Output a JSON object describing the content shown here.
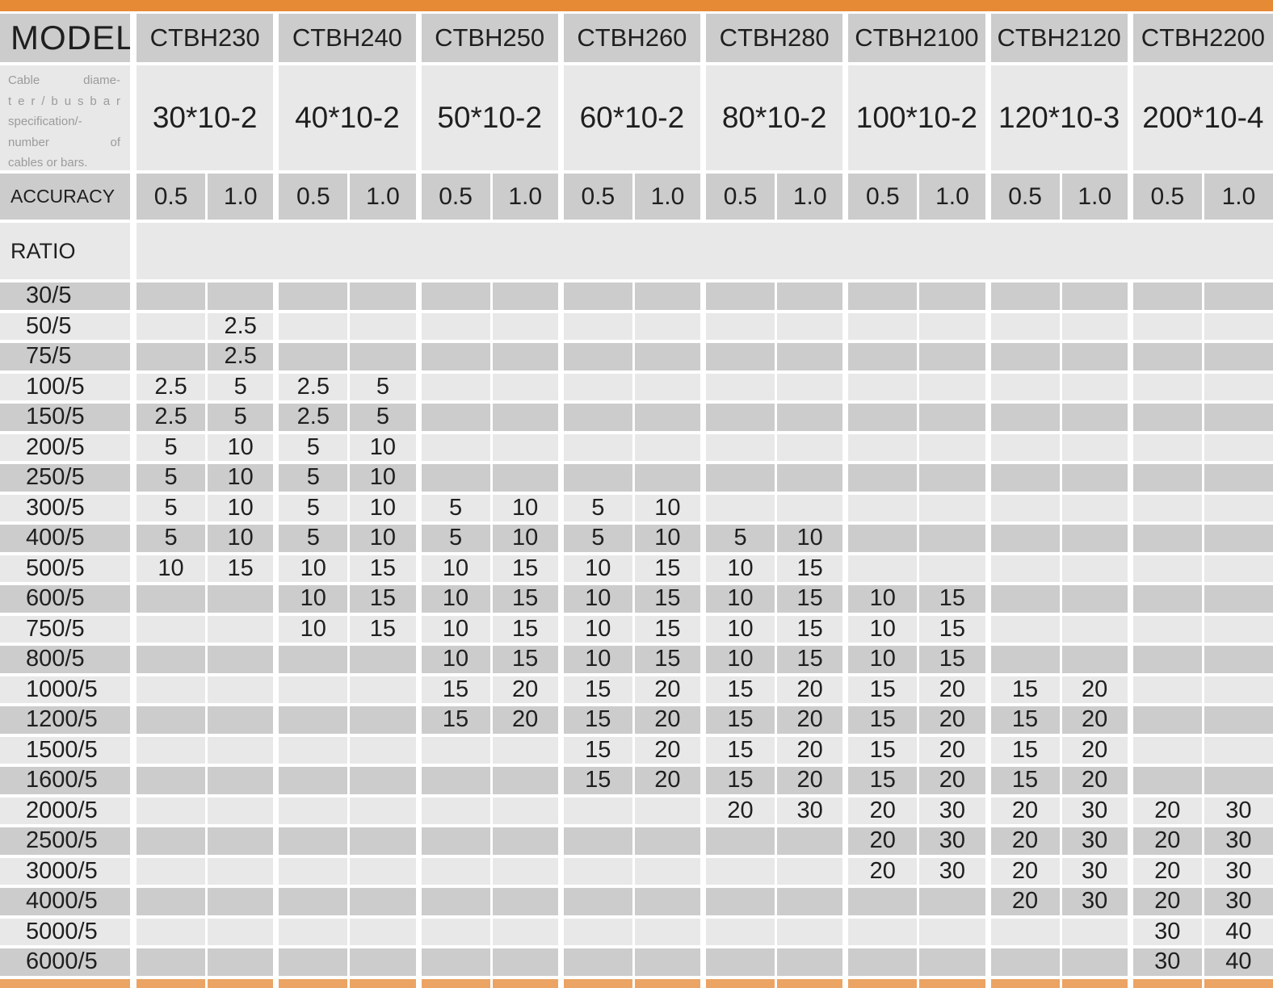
{
  "colors": {
    "top_bar": "#E68A36",
    "bottom_bar": "#EBA464",
    "cell_dark": "#CCCCCC",
    "cell_light": "#E8E8E8",
    "text_dark": "#1F1F1F",
    "note_text": "#9B9B9B"
  },
  "header": {
    "model_label": "MODEL",
    "accuracy_label": "ACCURACY",
    "ratio_label": "RATIO",
    "spec_note_lines": [
      "Cable diame-",
      "t e r / b u s b a r",
      "specification/-",
      "number of",
      "cables or bars."
    ],
    "models": [
      {
        "name": "CTBH230",
        "spec": "30*10-2"
      },
      {
        "name": "CTBH240",
        "spec": "40*10-2"
      },
      {
        "name": "CTBH250",
        "spec": "50*10-2"
      },
      {
        "name": "CTBH260",
        "spec": "60*10-2"
      },
      {
        "name": "CTBH280",
        "spec": "80*10-2"
      },
      {
        "name": "CTBH2100",
        "spec": "100*10-2"
      },
      {
        "name": "CTBH2120",
        "spec": "120*10-3"
      },
      {
        "name": "CTBH2200",
        "spec": "200*10-4"
      }
    ],
    "accuracy_values": [
      "0.5",
      "1.0",
      "0.5",
      "1.0",
      "0.5",
      "1.0",
      "0.5",
      "1.0",
      "0.5",
      "1.0",
      "0.5",
      "1.0",
      "0.5",
      "1.0",
      "0.5",
      "1.0"
    ]
  },
  "ratio_rows": [
    {
      "ratio": "30/5",
      "values": [
        "",
        "",
        "",
        "",
        "",
        "",
        "",
        "",
        "",
        "",
        "",
        "",
        "",
        "",
        "",
        ""
      ]
    },
    {
      "ratio": "50/5",
      "values": [
        "",
        "2.5",
        "",
        "",
        "",
        "",
        "",
        "",
        "",
        "",
        "",
        "",
        "",
        "",
        "",
        ""
      ]
    },
    {
      "ratio": "75/5",
      "values": [
        "",
        "2.5",
        "",
        "",
        "",
        "",
        "",
        "",
        "",
        "",
        "",
        "",
        "",
        "",
        "",
        ""
      ]
    },
    {
      "ratio": "100/5",
      "values": [
        "2.5",
        "5",
        "2.5",
        "5",
        "",
        "",
        "",
        "",
        "",
        "",
        "",
        "",
        "",
        "",
        "",
        ""
      ]
    },
    {
      "ratio": "150/5",
      "values": [
        "2.5",
        "5",
        "2.5",
        "5",
        "",
        "",
        "",
        "",
        "",
        "",
        "",
        "",
        "",
        "",
        "",
        ""
      ]
    },
    {
      "ratio": "200/5",
      "values": [
        "5",
        "10",
        "5",
        "10",
        "",
        "",
        "",
        "",
        "",
        "",
        "",
        "",
        "",
        "",
        "",
        ""
      ]
    },
    {
      "ratio": "250/5",
      "values": [
        "5",
        "10",
        "5",
        "10",
        "",
        "",
        "",
        "",
        "",
        "",
        "",
        "",
        "",
        "",
        "",
        ""
      ]
    },
    {
      "ratio": "300/5",
      "values": [
        "5",
        "10",
        "5",
        "10",
        "5",
        "10",
        "5",
        "10",
        "",
        "",
        "",
        "",
        "",
        "",
        "",
        ""
      ]
    },
    {
      "ratio": "400/5",
      "values": [
        "5",
        "10",
        "5",
        "10",
        "5",
        "10",
        "5",
        "10",
        "5",
        "10",
        "",
        "",
        "",
        "",
        "",
        ""
      ]
    },
    {
      "ratio": "500/5",
      "values": [
        "10",
        "15",
        "10",
        "15",
        "10",
        "15",
        "10",
        "15",
        "10",
        "15",
        "",
        "",
        "",
        "",
        "",
        ""
      ]
    },
    {
      "ratio": "600/5",
      "values": [
        "",
        "",
        "10",
        "15",
        "10",
        "15",
        "10",
        "15",
        "10",
        "15",
        "10",
        "15",
        "",
        "",
        "",
        ""
      ]
    },
    {
      "ratio": "750/5",
      "values": [
        "",
        "",
        "10",
        "15",
        "10",
        "15",
        "10",
        "15",
        "10",
        "15",
        "10",
        "15",
        "",
        "",
        "",
        ""
      ]
    },
    {
      "ratio": "800/5",
      "values": [
        "",
        "",
        "",
        "",
        "10",
        "15",
        "10",
        "15",
        "10",
        "15",
        "10",
        "15",
        "",
        "",
        "",
        ""
      ]
    },
    {
      "ratio": "1000/5",
      "values": [
        "",
        "",
        "",
        "",
        "15",
        "20",
        "15",
        "20",
        "15",
        "20",
        "15",
        "20",
        "15",
        "20",
        "",
        ""
      ]
    },
    {
      "ratio": "1200/5",
      "values": [
        "",
        "",
        "",
        "",
        "15",
        "20",
        "15",
        "20",
        "15",
        "20",
        "15",
        "20",
        "15",
        "20",
        "",
        ""
      ]
    },
    {
      "ratio": "1500/5",
      "values": [
        "",
        "",
        "",
        "",
        "",
        "",
        "15",
        "20",
        "15",
        "20",
        "15",
        "20",
        "15",
        "20",
        "",
        ""
      ]
    },
    {
      "ratio": "1600/5",
      "values": [
        "",
        "",
        "",
        "",
        "",
        "",
        "15",
        "20",
        "15",
        "20",
        "15",
        "20",
        "15",
        "20",
        "",
        ""
      ]
    },
    {
      "ratio": "2000/5",
      "values": [
        "",
        "",
        "",
        "",
        "",
        "",
        "",
        "",
        "20",
        "30",
        "20",
        "30",
        "20",
        "30",
        "20",
        "30"
      ]
    },
    {
      "ratio": "2500/5",
      "values": [
        "",
        "",
        "",
        "",
        "",
        "",
        "",
        "",
        "",
        "",
        "20",
        "30",
        "20",
        "30",
        "20",
        "30"
      ]
    },
    {
      "ratio": "3000/5",
      "values": [
        "",
        "",
        "",
        "",
        "",
        "",
        "",
        "",
        "",
        "",
        "20",
        "30",
        "20",
        "30",
        "20",
        "30"
      ]
    },
    {
      "ratio": "4000/5",
      "values": [
        "",
        "",
        "",
        "",
        "",
        "",
        "",
        "",
        "",
        "",
        "",
        "",
        "20",
        "30",
        "20",
        "30"
      ]
    },
    {
      "ratio": "5000/5",
      "values": [
        "",
        "",
        "",
        "",
        "",
        "",
        "",
        "",
        "",
        "",
        "",
        "",
        "",
        "",
        "30",
        "40"
      ]
    },
    {
      "ratio": "6000/5",
      "values": [
        "",
        "",
        "",
        "",
        "",
        "",
        "",
        "",
        "",
        "",
        "",
        "",
        "",
        "",
        "30",
        "40"
      ]
    }
  ]
}
